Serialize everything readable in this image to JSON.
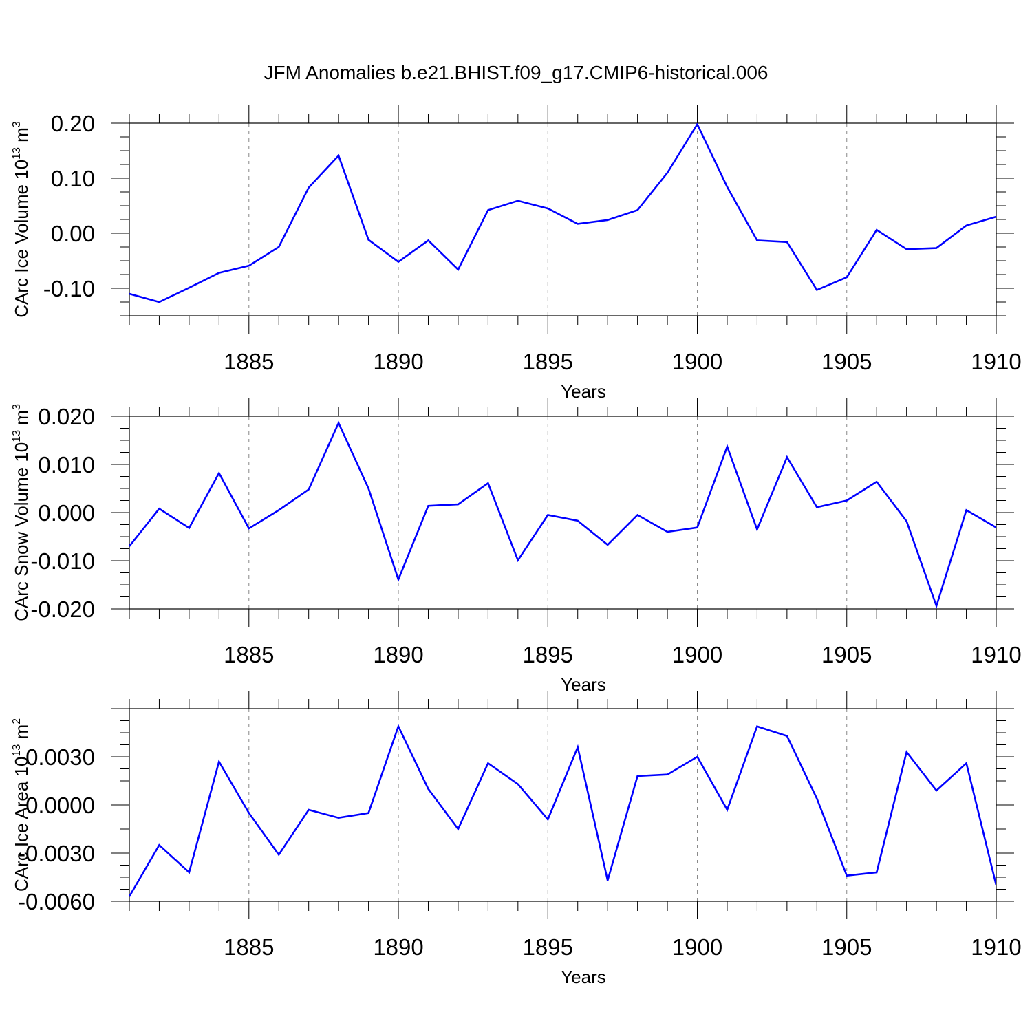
{
  "figure_title": "JFM Anomalies b.e21.BHIST.f09_g17.CMIP6-historical.006",
  "colors": {
    "line": "#0000ff",
    "frame": "#000000",
    "grid": "#888888"
  },
  "chart_data": [
    {
      "type": "line",
      "title": "",
      "xlabel": "Years",
      "ylabel": {
        "prefix": "CArc Ice Volume 10",
        "exponent": "13",
        "unit": " m",
        "unit_exponent": "3"
      },
      "xlim": [
        1881,
        1910
      ],
      "ylim": [
        -0.15,
        0.2
      ],
      "xticks": [
        1885,
        1890,
        1895,
        1900,
        1905,
        1910
      ],
      "yticks": [
        0.2,
        0.1,
        0.0,
        -0.1
      ],
      "ytick_labels": [
        "0.20",
        "0.10",
        "0.00",
        "-0.10"
      ],
      "grid": "x-dashed",
      "x": [
        1881,
        1882,
        1883,
        1884,
        1885,
        1886,
        1887,
        1888,
        1889,
        1890,
        1891,
        1892,
        1893,
        1894,
        1895,
        1896,
        1897,
        1898,
        1899,
        1900,
        1901,
        1902,
        1903,
        1904,
        1905,
        1906,
        1907,
        1908,
        1909,
        1910
      ],
      "values": [
        -0.11,
        -0.125,
        -0.099,
        -0.072,
        -0.059,
        -0.025,
        0.083,
        0.141,
        -0.012,
        -0.052,
        -0.013,
        -0.066,
        0.042,
        0.059,
        0.045,
        0.017,
        0.024,
        0.042,
        0.11,
        0.198,
        0.084,
        -0.013,
        -0.016,
        -0.103,
        -0.08,
        0.006,
        -0.029,
        -0.027,
        0.014,
        0.03
      ]
    },
    {
      "type": "line",
      "title": "",
      "xlabel": "Years",
      "ylabel": {
        "prefix": "CArc Snow Volume 10",
        "exponent": "13",
        "unit": " m",
        "unit_exponent": "3"
      },
      "xlim": [
        1881,
        1910
      ],
      "ylim": [
        -0.02,
        0.02
      ],
      "xticks": [
        1885,
        1890,
        1895,
        1900,
        1905,
        1910
      ],
      "yticks": [
        0.02,
        0.01,
        0.0,
        -0.01,
        -0.02
      ],
      "ytick_labels": [
        "0.020",
        "0.010",
        "0.000",
        "-0.010",
        "-0.020"
      ],
      "grid": "x-dashed",
      "x": [
        1881,
        1882,
        1883,
        1884,
        1885,
        1886,
        1887,
        1888,
        1889,
        1890,
        1891,
        1892,
        1893,
        1894,
        1895,
        1896,
        1897,
        1898,
        1899,
        1900,
        1901,
        1902,
        1903,
        1904,
        1905,
        1906,
        1907,
        1908,
        1909,
        1910
      ],
      "values": [
        -0.007,
        0.0008,
        -0.0032,
        0.0082,
        -0.0033,
        0.0005,
        0.0048,
        0.0186,
        0.005,
        -0.0139,
        0.0014,
        0.0017,
        0.0061,
        -0.0099,
        -0.0005,
        -0.0017,
        -0.0067,
        -0.0005,
        -0.004,
        -0.0031,
        0.0137,
        -0.0035,
        0.0115,
        0.0011,
        0.0025,
        0.0064,
        -0.0018,
        -0.0194,
        0.0005,
        -0.0031
      ]
    },
    {
      "type": "line",
      "title": "",
      "xlabel": "Years",
      "ylabel": {
        "prefix": "CArc Ice Area 10",
        "exponent": "13",
        "unit": " m",
        "unit_exponent": "2"
      },
      "xlim": [
        1881,
        1910
      ],
      "ylim": [
        -0.006,
        0.006
      ],
      "xticks": [
        1885,
        1890,
        1895,
        1900,
        1905,
        1910
      ],
      "yticks": [
        0.003,
        0.0,
        -0.003,
        -0.006
      ],
      "ytick_labels": [
        "0.0030",
        "0.0000",
        "-0.0030",
        "-0.0060"
      ],
      "grid": "x-dashed",
      "x": [
        1881,
        1882,
        1883,
        1884,
        1885,
        1886,
        1887,
        1888,
        1889,
        1890,
        1891,
        1892,
        1893,
        1894,
        1895,
        1896,
        1897,
        1898,
        1899,
        1900,
        1901,
        1902,
        1903,
        1904,
        1905,
        1906,
        1907,
        1908,
        1909,
        1910
      ],
      "values": [
        -0.0057,
        -0.0025,
        -0.0042,
        0.0027,
        -0.0005,
        -0.0031,
        -0.0003,
        -0.0008,
        -0.0005,
        0.0049,
        0.001,
        -0.0015,
        0.0026,
        0.0013,
        -0.0009,
        0.0036,
        -0.0047,
        0.0018,
        0.0019,
        0.003,
        -0.0003,
        0.0049,
        0.0043,
        0.0004,
        -0.0044,
        -0.0042,
        0.0033,
        0.0009,
        0.0026,
        -0.005
      ]
    }
  ]
}
